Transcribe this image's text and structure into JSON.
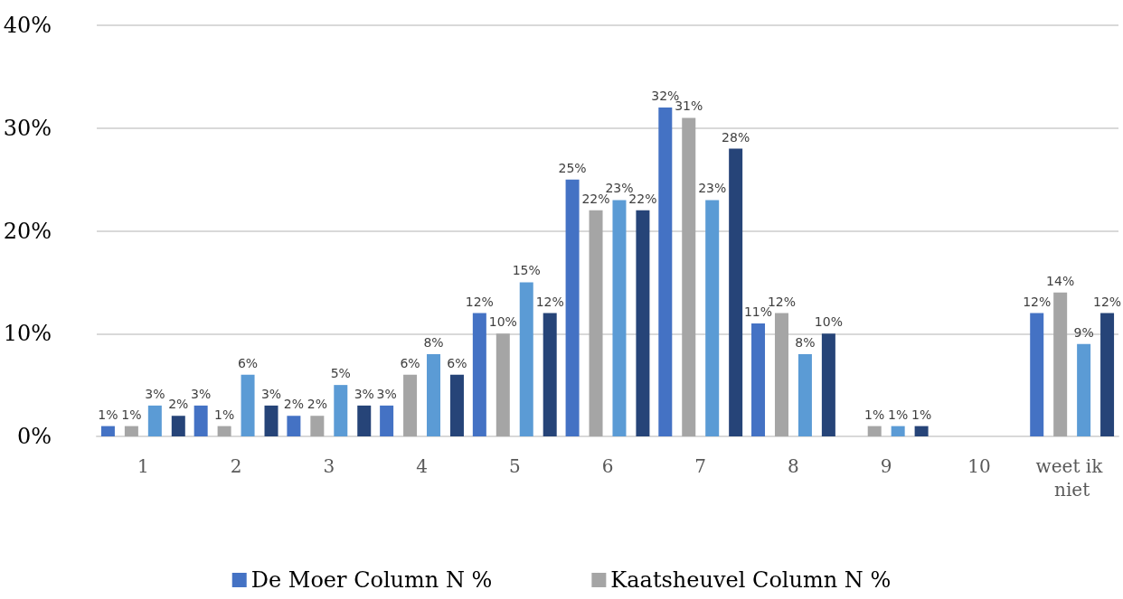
{
  "chart_data": {
    "type": "bar",
    "categories": [
      "1",
      "2",
      "3",
      "4",
      "5",
      "6",
      "7",
      "8",
      "9",
      "10",
      "weet ik niet"
    ],
    "series": [
      {
        "name": "De Moer Column N %",
        "color": "#4472c4",
        "values": [
          1,
          3,
          2,
          3,
          12,
          25,
          32,
          11,
          null,
          null,
          12
        ],
        "value_labels": [
          "1%",
          "3%",
          "2%",
          "3%",
          "12%",
          "25%",
          "32%",
          "11%",
          null,
          null,
          "12%"
        ]
      },
      {
        "name": "Kaatsheuvel Column N %",
        "color": "#a5a5a5",
        "values": [
          1,
          1,
          2,
          6,
          10,
          22,
          31,
          12,
          1,
          null,
          14
        ],
        "value_labels": [
          "1%",
          "1%",
          "2%",
          "6%",
          "10%",
          "22%",
          "31%",
          "12%",
          "1%",
          null,
          "14%"
        ]
      },
      {
        "color": "#5b9bd5",
        "values": [
          3,
          6,
          5,
          8,
          15,
          23,
          23,
          8,
          1,
          null,
          9
        ],
        "value_labels": [
          "3%",
          "6%",
          "5%",
          "8%",
          "15%",
          "23%",
          "23%",
          "8%",
          "1%",
          null,
          "9%"
        ]
      },
      {
        "color": "#264478",
        "values": [
          2,
          3,
          3,
          6,
          12,
          22,
          28,
          10,
          1,
          null,
          12
        ],
        "value_labels": [
          "2%",
          "3%",
          "3%",
          "6%",
          "12%",
          "22%",
          "28%",
          "10%",
          "1%",
          null,
          "12%"
        ]
      }
    ],
    "ylim": [
      0,
      40
    ],
    "yticks": [
      {
        "value": 0,
        "label": "0%"
      },
      {
        "value": 10,
        "label": "10%"
      },
      {
        "value": 20,
        "label": "20%"
      },
      {
        "value": 30,
        "label": "30%"
      },
      {
        "value": 40,
        "label": "40%"
      }
    ],
    "grid": "y",
    "legend": "bottom"
  }
}
